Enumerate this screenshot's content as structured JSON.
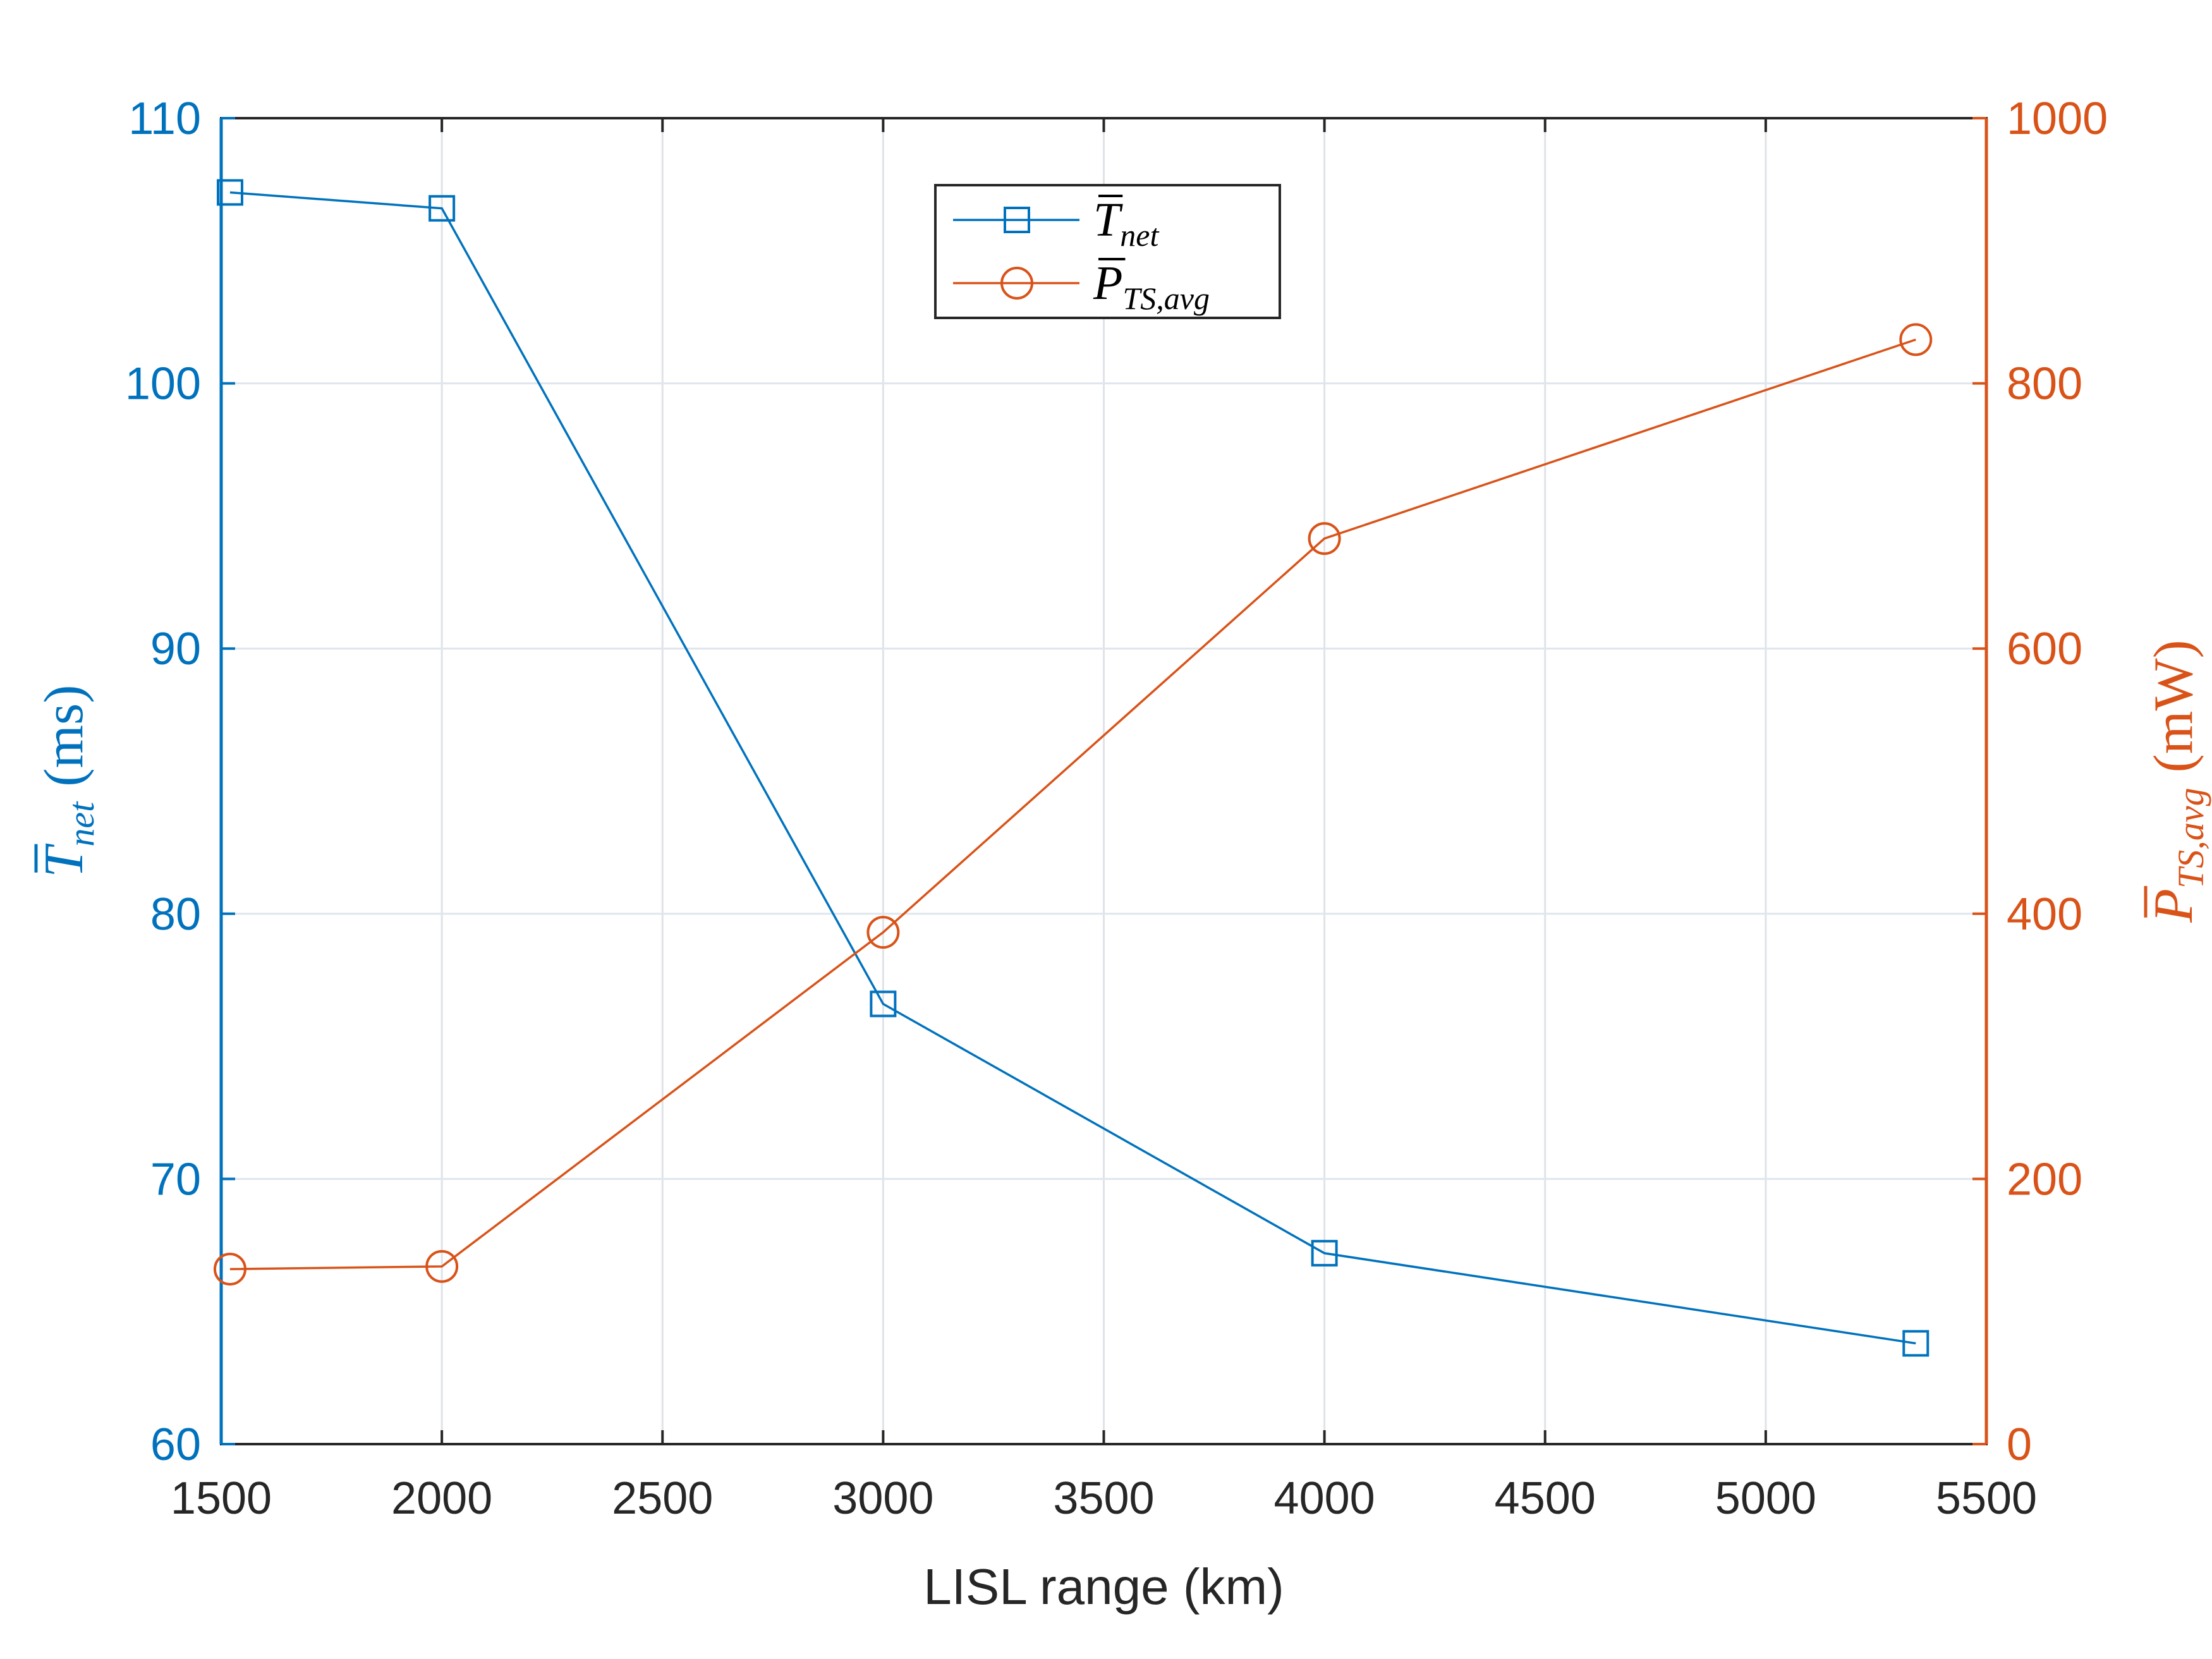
{
  "chart_data": {
    "type": "line",
    "dual_y_axis": true,
    "xlabel": "LISL range (km)",
    "xlim": [
      1500,
      5500
    ],
    "xticks": [
      "1500",
      "2000",
      "2500",
      "3000",
      "3500",
      "4000",
      "4500",
      "5000",
      "5500"
    ],
    "grid": true,
    "legend_position": "top-center",
    "left_axis": {
      "label_symbol": "T",
      "label_subscript": "net",
      "label_unit": "(ms)",
      "ylim": [
        60,
        110
      ],
      "yticks": [
        "60",
        "70",
        "80",
        "90",
        "100",
        "110"
      ],
      "color": "#0072BD"
    },
    "right_axis": {
      "label_symbol": "P",
      "label_subscript": "TS,avg",
      "label_unit": "(mW)",
      "ylim": [
        0,
        1000
      ],
      "yticks": [
        "0",
        "200",
        "400",
        "600",
        "800",
        "1000"
      ],
      "color": "#D95319"
    },
    "series": [
      {
        "name_symbol": "T",
        "name_subscript": "net",
        "axis": "left",
        "marker": "square",
        "color": "#0072BD",
        "x": [
          1520,
          2000,
          3000,
          4000,
          5340
        ],
        "y": [
          107.2,
          106.6,
          76.6,
          67.2,
          63.8
        ]
      },
      {
        "name_symbol": "P",
        "name_subscript": "TS,avg",
        "axis": "right",
        "marker": "circle",
        "color": "#D95319",
        "x": [
          1520,
          2000,
          3000,
          4000,
          5340
        ],
        "y": [
          132,
          134,
          386,
          683,
          833
        ]
      }
    ]
  }
}
